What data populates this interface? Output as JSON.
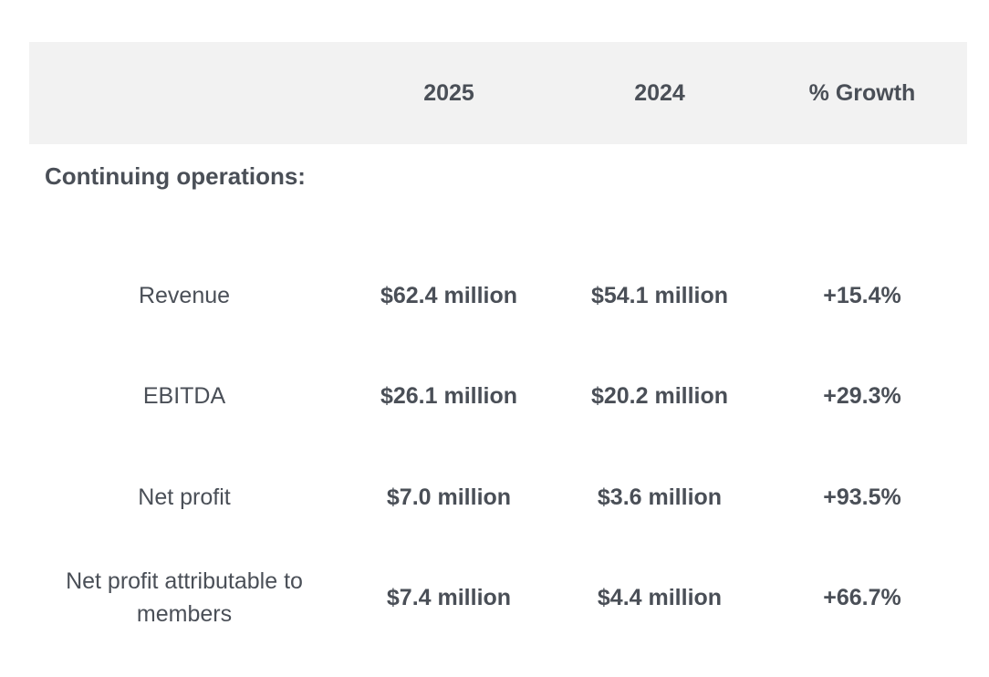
{
  "header": {
    "blank": "",
    "col_2025": "2025",
    "col_2024": "2024",
    "col_growth": "% Growth"
  },
  "section": {
    "title": "Continuing operations:"
  },
  "rows": [
    {
      "label": "Revenue",
      "v2025": "$62.4 million",
      "v2024": "$54.1 million",
      "growth": "+15.4%"
    },
    {
      "label": "EBITDA",
      "v2025": "$26.1 million",
      "v2024": "$20.2 million",
      "growth": "+29.3%"
    },
    {
      "label": "Net profit",
      "v2025": "$7.0 million",
      "v2024": "$3.6 million",
      "growth": "+93.5%"
    },
    {
      "label": "Net profit attributable to members",
      "v2025": "$7.4 million",
      "v2024": "$4.4 million",
      "growth": "+66.7%"
    }
  ]
}
